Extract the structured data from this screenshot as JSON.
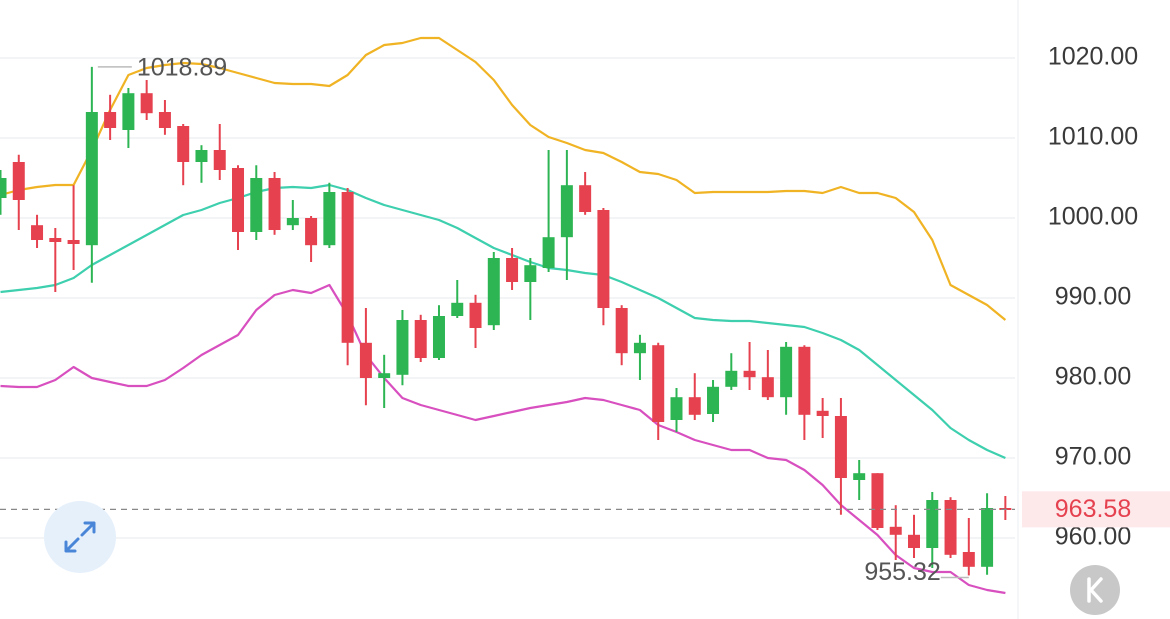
{
  "chart_data": {
    "type": "candlestick",
    "ylim": [
      949.875,
      1027.25
    ],
    "yticks": [
      {
        "value": 1020,
        "label": "1020.00"
      },
      {
        "value": 1010,
        "label": "1010.00"
      },
      {
        "value": 1000,
        "label": "1000.00"
      },
      {
        "value": 990,
        "label": "990.00"
      },
      {
        "value": 980,
        "label": "980.00"
      },
      {
        "value": 970,
        "label": "970.00"
      },
      {
        "value": 960,
        "label": "960.00"
      }
    ],
    "grid": true,
    "up_color": "#2db553",
    "down_color": "#e5414f",
    "open": [
      1002.5,
      1007,
      999.1,
      997.5,
      997.25,
      996.6,
      1013.25,
      1011,
      1015.6,
      1013.25,
      1011.5,
      1007,
      1008.5,
      1006.25,
      998.25,
      1005,
      999.1,
      1000,
      996.6,
      1003.25,
      984.4,
      980,
      980.4,
      987.25,
      982.5,
      987.75,
      989.4,
      986.6,
      995,
      992,
      993.75,
      997.6,
      1004.1,
      1001,
      988.75,
      983.1,
      984.1,
      974.75,
      977.6,
      975.5,
      978.9,
      980.9,
      980.1,
      977.6,
      983.9,
      975.9,
      975.25,
      967.25,
      968.1,
      961.4,
      960.4,
      958.75,
      964.75,
      958.25,
      956.4,
      963.75
    ],
    "high": [
      1006,
      1007.9,
      1000.4,
      998.75,
      1004.1,
      1018.89,
      1015.4,
      1016.25,
      1017.25,
      1014.75,
      1011.75,
      1009.1,
      1011.75,
      1006.6,
      1006.6,
      1005.75,
      1002.25,
      1000.25,
      1004.4,
      1003.75,
      988.75,
      982.9,
      988.5,
      987.9,
      989.1,
      992.25,
      990.4,
      995.75,
      996.25,
      995,
      1008.5,
      1008.5,
      1005.75,
      1001.25,
      989.1,
      985.4,
      984.4,
      978.75,
      980.6,
      979.75,
      983.1,
      984.5,
      983.5,
      984.5,
      984.1,
      977.5,
      977.5,
      969.75,
      968.1,
      964.1,
      962.9,
      965.75,
      965.1,
      962.5,
      965.6,
      965.25
    ],
    "low": [
      1000.4,
      998.5,
      996.25,
      990.75,
      993.5,
      991.9,
      1009.75,
      1008.75,
      1012.25,
      1010.4,
      1004.1,
      1004.4,
      1004.75,
      996,
      997.25,
      997.9,
      998.5,
      994.5,
      996.25,
      981.6,
      976.6,
      976.25,
      979.1,
      982,
      982.25,
      987.5,
      983.75,
      986,
      991,
      987.25,
      993.25,
      992.25,
      1000.4,
      986.6,
      981.6,
      979.75,
      972.25,
      973.25,
      974.75,
      974.5,
      978.5,
      978.5,
      977.25,
      975.4,
      972.25,
      972.5,
      962.9,
      964.75,
      961,
      957.25,
      957.5,
      956.25,
      957.5,
      955.32,
      955.4,
      962.25
    ],
    "close": [
      1005,
      1002.25,
      997.25,
      997,
      996.75,
      1013.25,
      1011.25,
      1015.6,
      1013.1,
      1011.25,
      1007,
      1008.5,
      1006,
      998.25,
      1005,
      998.5,
      1000,
      996.6,
      1003.25,
      984.4,
      980,
      980.6,
      987.25,
      982.5,
      987.75,
      989.4,
      986.25,
      995,
      992,
      994.1,
      997.6,
      1004.1,
      1000.75,
      988.75,
      983.1,
      984.4,
      974.5,
      977.6,
      975.4,
      978.9,
      980.9,
      980.1,
      977.6,
      983.9,
      975.4,
      975.25,
      967.5,
      968.1,
      961.25,
      960.4,
      958.75,
      964.75,
      957.9,
      956.4,
      963.75,
      963.58
    ],
    "series": [
      {
        "color": "#f0b323",
        "values": [
          1002.88,
          1003.5,
          1003.88,
          1004.13,
          1004.13,
          1008.5,
          1013.5,
          1017.88,
          1018.75,
          1019.13,
          1019.38,
          1019.25,
          1018.75,
          1018.13,
          1017.5,
          1016.88,
          1016.75,
          1016.75,
          1016.5,
          1017.88,
          1020.38,
          1021.63,
          1021.88,
          1022.5,
          1022.5,
          1021,
          1019.5,
          1017.25,
          1014.13,
          1011.63,
          1010.13,
          1009.38,
          1008.5,
          1008.13,
          1007,
          1005.75,
          1005.5,
          1004.75,
          1003.13,
          1003.25,
          1003.25,
          1003.25,
          1003.25,
          1003.38,
          1003.38,
          1003.13,
          1003.88,
          1003.13,
          1003.13,
          1002.5,
          1000.75,
          997.25,
          991.63,
          990.38,
          989.13,
          987.25
        ]
      },
      {
        "color": "#3dcfae",
        "values": [
          990.75,
          991,
          991.25,
          991.63,
          992.5,
          994.13,
          995.38,
          996.63,
          997.88,
          999.13,
          1000.38,
          1001,
          1001.88,
          1002.5,
          1003.25,
          1003.75,
          1003.88,
          1003.75,
          1004.13,
          1003.5,
          1002.5,
          1001.63,
          1001,
          1000.38,
          999.75,
          998.75,
          997.5,
          996.25,
          995.38,
          994.5,
          993.75,
          993.5,
          993.13,
          992.88,
          992,
          991,
          990,
          988.75,
          987.5,
          987.25,
          987.13,
          987.13,
          986.88,
          986.63,
          986.38,
          985.63,
          984.75,
          983.5,
          981.63,
          979.75,
          977.88,
          976,
          973.75,
          972.25,
          971,
          970
        ]
      },
      {
        "color": "#d84fbf",
        "values": [
          979,
          978.88,
          978.88,
          979.75,
          981.38,
          980,
          979.5,
          979,
          979,
          979.75,
          981.25,
          982.88,
          984.13,
          985.38,
          988.5,
          990.38,
          991,
          990.63,
          991.63,
          987.88,
          982.88,
          980,
          977.5,
          976.63,
          976,
          975.38,
          974.75,
          975.25,
          975.75,
          976.25,
          976.63,
          977,
          977.5,
          977.25,
          976.63,
          976,
          974.13,
          973.25,
          972.25,
          971.63,
          971,
          971,
          970,
          969.75,
          968.5,
          966.63,
          964.13,
          962.25,
          960.38,
          957.88,
          956.25,
          955.75,
          955.75,
          954.13,
          953.5,
          953.13
        ]
      }
    ],
    "max_label": 1018.89,
    "min_label": 955.32,
    "last_price": 963.58
  }
}
